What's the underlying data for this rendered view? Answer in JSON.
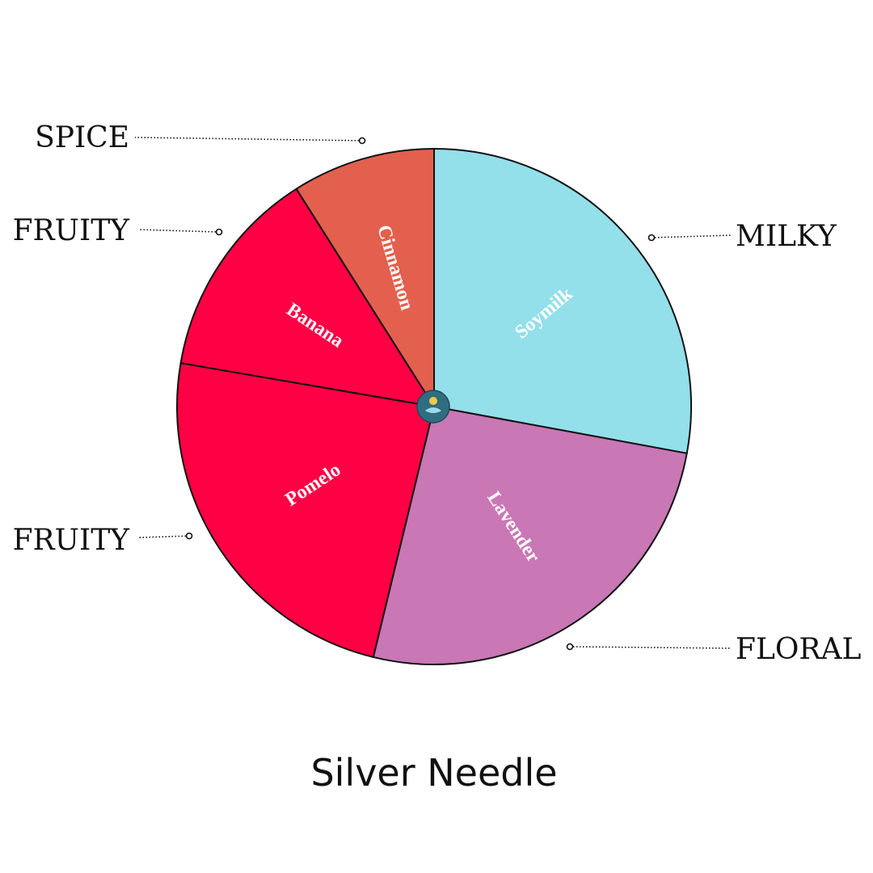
{
  "chart_data": {
    "type": "pie",
    "title": "Silver Needle",
    "start_angle_deg": 0,
    "direction": "clockwise",
    "slices": [
      {
        "label": "Soymilk",
        "category": "MILKY",
        "value": 27.9,
        "color": "#93DFEA"
      },
      {
        "label": "Lavender",
        "category": "FLORAL",
        "value": 25.9,
        "color": "#C977B5"
      },
      {
        "label": "Pomelo",
        "category": "FRUITY",
        "value": 23.9,
        "color": "#FF0044"
      },
      {
        "label": "Banana",
        "category": "FRUITY",
        "value": 13.3,
        "color": "#FF0044"
      },
      {
        "label": "Cinnamon",
        "category": "SPICE",
        "value": 9.0,
        "color": "#E3604E"
      }
    ]
  },
  "center_logo": {
    "icon": "tea-cup-logo-icon",
    "color": "#2F6E80"
  }
}
